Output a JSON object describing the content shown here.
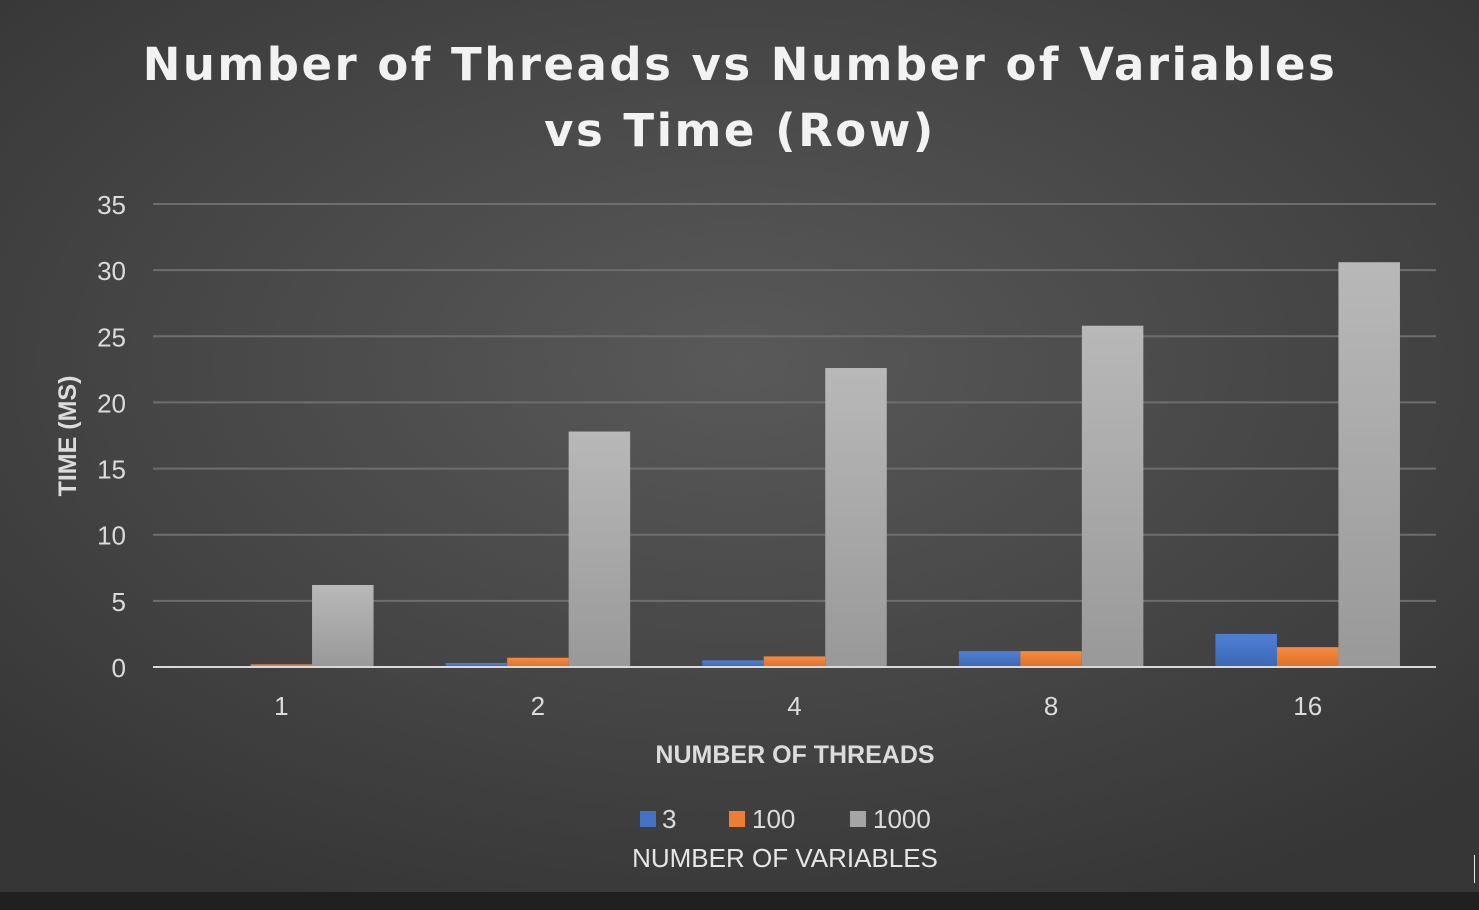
{
  "chart_data": {
    "type": "bar",
    "title_line1": "Number of Threads vs Number of Variables",
    "title_line2": "vs Time (Row)",
    "xlabel": "NUMBER OF THREADS",
    "ylabel": "TIME (MS)",
    "legend_title": "NUMBER OF VARIABLES",
    "legend_position": "bottom",
    "grid": true,
    "categories": [
      "1",
      "2",
      "4",
      "8",
      "16"
    ],
    "ylim": [
      0,
      35
    ],
    "yticks": [
      "0",
      "5",
      "10",
      "15",
      "20",
      "25",
      "30",
      "35"
    ],
    "series": [
      {
        "name": "3",
        "color": "#4472c4",
        "values": [
          0.05,
          0.3,
          0.5,
          1.2,
          2.5
        ]
      },
      {
        "name": "100",
        "color": "#ed7d31",
        "values": [
          0.2,
          0.7,
          0.8,
          1.2,
          1.5
        ]
      },
      {
        "name": "1000",
        "color": "#a5a5a5",
        "values": [
          6.2,
          17.8,
          22.6,
          25.8,
          30.6
        ]
      }
    ]
  }
}
